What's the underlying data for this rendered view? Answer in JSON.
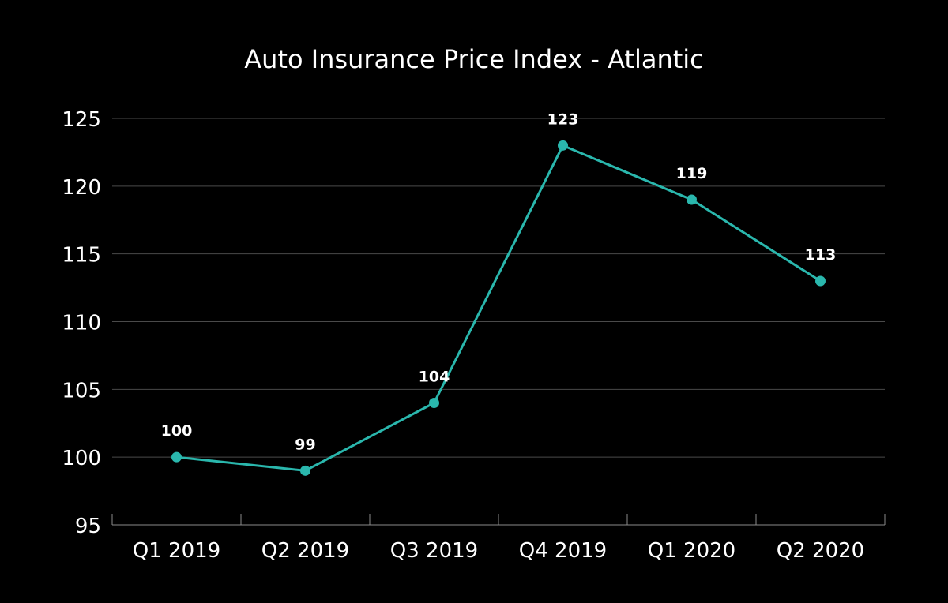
{
  "chart_data": {
    "type": "line",
    "title": "Auto Insurance Price Index - Atlantic",
    "xlabel": "",
    "ylabel": "",
    "categories": [
      "Q1 2019",
      "Q2 2019",
      "Q3 2019",
      "Q4 2019",
      "Q1 2020",
      "Q2 2020"
    ],
    "series": [
      {
        "values": [
          100,
          99,
          104,
          123,
          119,
          113
        ]
      }
    ],
    "data_labels": [
      "100",
      "99",
      "104",
      "123",
      "119",
      "113"
    ],
    "ylim": [
      95,
      125
    ],
    "yticks": [
      95,
      100,
      105,
      110,
      115,
      120,
      125
    ],
    "ytick_labels": [
      "95",
      "100",
      "105",
      "110",
      "115",
      "120",
      "125"
    ],
    "grid": true,
    "legend": "none",
    "colors": {
      "background": "#000000",
      "line": "#2ab7ad",
      "marker": "#2ab7ad",
      "text": "#ffffff",
      "grid": "#4a4a4a"
    }
  }
}
